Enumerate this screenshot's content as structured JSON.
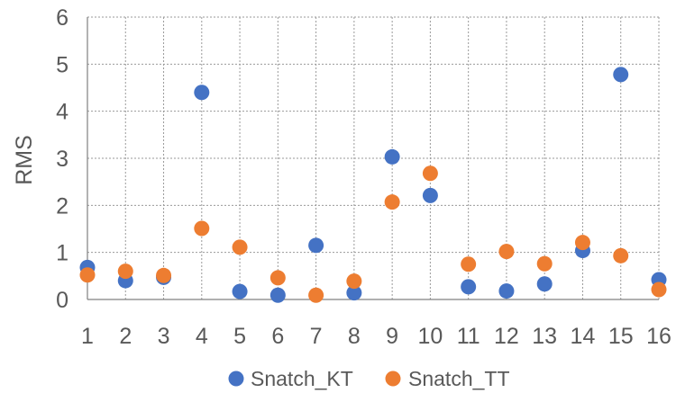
{
  "chart_data": {
    "type": "scatter",
    "title": "",
    "xlabel": "",
    "ylabel": "RMS",
    "x": [
      1,
      2,
      3,
      4,
      5,
      6,
      7,
      8,
      9,
      10,
      11,
      12,
      13,
      14,
      15,
      16
    ],
    "xlim": [
      1,
      16
    ],
    "ylim": [
      0,
      6
    ],
    "yticks": [
      0,
      1,
      2,
      3,
      4,
      5,
      6
    ],
    "xticks": [
      1,
      2,
      3,
      4,
      5,
      6,
      7,
      8,
      9,
      10,
      11,
      12,
      13,
      14,
      15,
      16
    ],
    "grid": true,
    "legend_position": "bottom",
    "series": [
      {
        "name": "Snatch_KT",
        "color": "#4472C4",
        "values": [
          0.68,
          0.4,
          0.47,
          4.4,
          0.17,
          0.09,
          1.15,
          0.14,
          3.03,
          2.21,
          0.27,
          0.18,
          0.33,
          1.04,
          4.78,
          0.42
        ]
      },
      {
        "name": "Snatch_TT",
        "color": "#ED7D31",
        "values": [
          0.52,
          0.6,
          0.51,
          1.51,
          1.11,
          0.46,
          0.09,
          0.39,
          2.07,
          2.68,
          0.75,
          1.02,
          0.76,
          1.21,
          0.93,
          0.21
        ]
      }
    ]
  }
}
